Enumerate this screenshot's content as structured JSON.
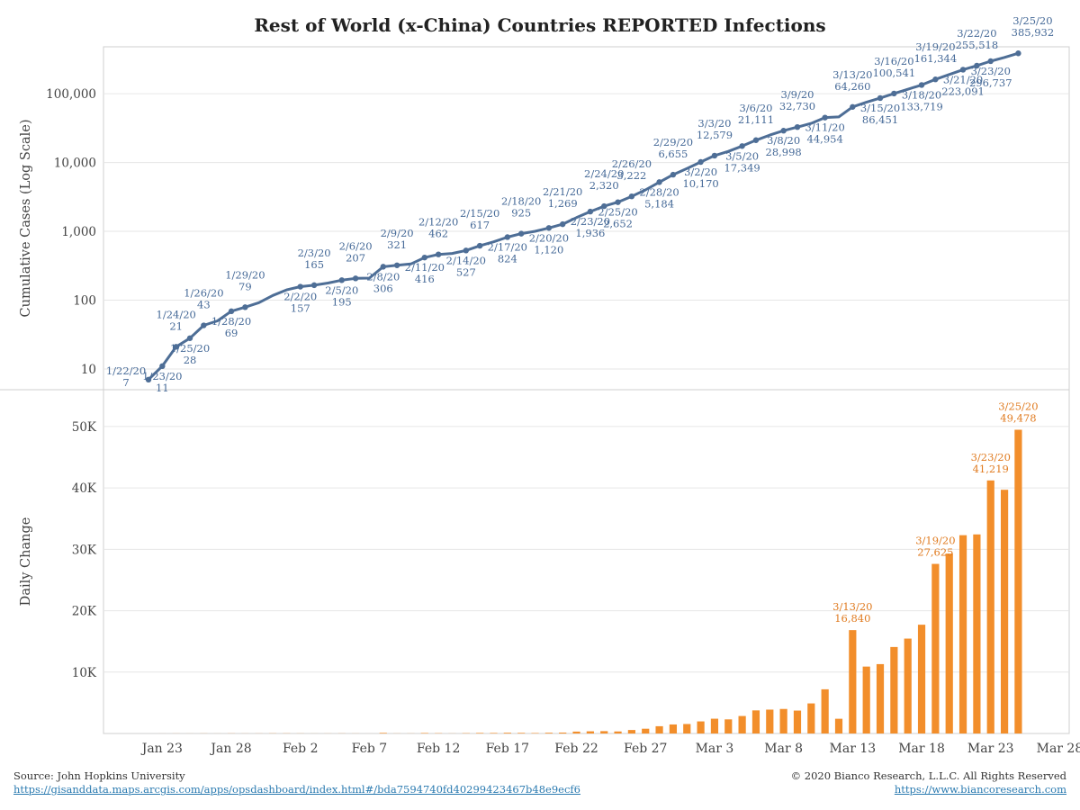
{
  "title": "Rest of World (x-China) Countries REPORTED Infections",
  "footer": {
    "source": "Source: John Hopkins University",
    "source_url": "https://gisanddata.maps.arcgis.com/apps/opsdashboard/index.html#/bda7594740fd40299423467b48e9ecf6",
    "copyright": "© 2020 Bianco Research, L.L.C. All Rights Reserved",
    "site": "https://www.biancoresearch.com"
  },
  "colors": {
    "line": "#4e6e96",
    "bar": "#f28e2b",
    "annot_line": "#466a98",
    "annot_bar": "#e07b20",
    "grid": "#e6e6e6"
  },
  "chart_data": [
    {
      "type": "line",
      "ylabel": "Cumulative Cases (Log Scale)",
      "yscale": "log",
      "ylim": [
        5,
        480000
      ],
      "yticks": [
        10,
        100,
        1000,
        10000,
        100000
      ],
      "ytick_labels": [
        "10",
        "100",
        "1,000",
        "10,000",
        "100,000"
      ],
      "x_start": "2020-01-22",
      "series": [
        {
          "values": [
            7,
            11,
            21,
            28,
            43,
            50,
            69,
            79,
            92,
            117,
            141,
            157,
            165,
            177,
            195,
            207,
            209,
            306,
            321,
            336,
            416,
            462,
            477,
            527,
            617,
            703,
            824,
            925,
            1000,
            1120,
            1269,
            1580,
            1936,
            2320,
            2652,
            3222,
            4000,
            5184,
            6655,
            8200,
            10170,
            12579,
            14500,
            17349,
            21111,
            25000,
            28998,
            32730,
            37000,
            44954,
            46000,
            64260,
            75000,
            86451,
            100541,
            116000,
            133719,
            161344,
            190000,
            223091,
            255518,
            296737,
            336000,
            385932
          ]
        }
      ],
      "annotations_above": [
        {
          "date": "1/24/20",
          "value": "21"
        },
        {
          "date": "1/26/20",
          "value": "43"
        },
        {
          "date": "1/29/20",
          "value": "79"
        },
        {
          "date": "2/3/20",
          "value": "165"
        },
        {
          "date": "2/6/20",
          "value": "207"
        },
        {
          "date": "2/9/20",
          "value": "321"
        },
        {
          "date": "2/12/20",
          "value": "462"
        },
        {
          "date": "2/15/20",
          "value": "617"
        },
        {
          "date": "2/18/20",
          "value": "925"
        },
        {
          "date": "2/21/20",
          "value": "1,269"
        },
        {
          "date": "2/24/20",
          "value": "2,320"
        },
        {
          "date": "2/26/20",
          "value": "3,222"
        },
        {
          "date": "2/29/20",
          "value": "6,655"
        },
        {
          "date": "3/3/20",
          "value": "12,579"
        },
        {
          "date": "3/6/20",
          "value": "21,111"
        },
        {
          "date": "3/9/20",
          "value": "32,730"
        },
        {
          "date": "3/13/20",
          "value": "64,260"
        },
        {
          "date": "3/16/20",
          "value": "100,541"
        },
        {
          "date": "3/19/20",
          "value": "161,344"
        },
        {
          "date": "3/22/20",
          "value": "255,518"
        },
        {
          "date": "3/25/20",
          "value": "385,932"
        }
      ],
      "annotations_below": [
        {
          "date": "1/22/20",
          "value": "7"
        },
        {
          "date": "1/23/20",
          "value": "11"
        },
        {
          "date": "1/25/20",
          "value": "28"
        },
        {
          "date": "1/28/20",
          "value": "69"
        },
        {
          "date": "2/2/20",
          "value": "157"
        },
        {
          "date": "2/5/20",
          "value": "195"
        },
        {
          "date": "2/8/20",
          "value": "306"
        },
        {
          "date": "2/11/20",
          "value": "416"
        },
        {
          "date": "2/14/20",
          "value": "527"
        },
        {
          "date": "2/17/20",
          "value": "824"
        },
        {
          "date": "2/20/20",
          "value": "1,120"
        },
        {
          "date": "2/23/20",
          "value": "1,936"
        },
        {
          "date": "2/25/20",
          "value": "2,652"
        },
        {
          "date": "2/28/20",
          "value": "5,184"
        },
        {
          "date": "3/2/20",
          "value": "10,170"
        },
        {
          "date": "3/5/20",
          "value": "17,349"
        },
        {
          "date": "3/8/20",
          "value": "28,998"
        },
        {
          "date": "3/11/20",
          "value": "44,954"
        },
        {
          "date": "3/15/20",
          "value": "86,451"
        },
        {
          "date": "3/18/20",
          "value": "133,719"
        },
        {
          "date": "3/21/20",
          "value": "223,091"
        },
        {
          "date": "3/23/20",
          "value": "296,737"
        }
      ]
    },
    {
      "type": "bar",
      "ylabel": "Daily Change",
      "ylim": [
        0,
        56000
      ],
      "yticks": [
        10000,
        20000,
        30000,
        40000,
        50000
      ],
      "ytick_labels": [
        "10K",
        "20K",
        "30K",
        "40K",
        "50K"
      ],
      "x_start": "2020-01-22",
      "xtick_labels": [
        "Jan 23",
        "Jan 28",
        "Feb 2",
        "Feb 7",
        "Feb 12",
        "Feb 17",
        "Feb 22",
        "Feb 27",
        "Mar 3",
        "Mar 8",
        "Mar 13",
        "Mar 18",
        "Mar 23",
        "Mar 28"
      ],
      "xtick_dates": [
        "2020-01-23",
        "2020-01-28",
        "2020-02-02",
        "2020-02-07",
        "2020-02-12",
        "2020-02-17",
        "2020-02-22",
        "2020-02-27",
        "2020-03-03",
        "2020-03-08",
        "2020-03-13",
        "2020-03-18",
        "2020-03-23",
        "2020-03-28"
      ],
      "values": [
        0,
        4,
        10,
        7,
        15,
        7,
        19,
        10,
        13,
        25,
        24,
        16,
        8,
        12,
        18,
        12,
        2,
        97,
        15,
        15,
        80,
        46,
        15,
        50,
        90,
        86,
        121,
        101,
        75,
        120,
        149,
        311,
        356,
        384,
        332,
        570,
        778,
        1184,
        1471,
        1545,
        1970,
        2409,
        2300,
        2849,
        3762,
        3889,
        3998,
        3732,
        4900,
        7200,
        2400,
        16840,
        10900,
        11300,
        14090,
        15459,
        17719,
        27625,
        29300,
        32300,
        32427,
        41219,
        39700,
        49478
      ],
      "annotations": [
        {
          "date": "3/13/20",
          "value": "16,840"
        },
        {
          "date": "3/19/20",
          "value": "27,625"
        },
        {
          "date": "3/23/20",
          "value": "41,219"
        },
        {
          "date": "3/25/20",
          "value": "49,478"
        }
      ]
    }
  ]
}
